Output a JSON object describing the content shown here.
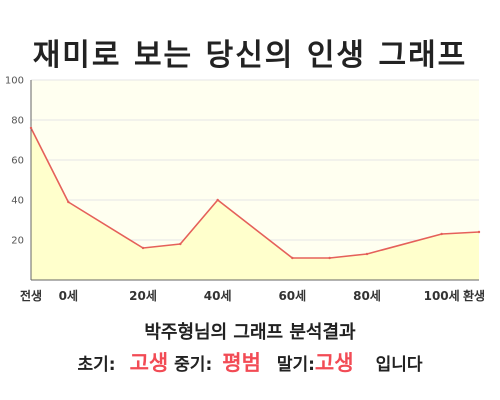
{
  "title": "재미로 보는 당신의 인생 그래프",
  "subtitle": "박주형님의 그래프 분석결과",
  "result": {
    "early_label": "초기:",
    "early_value": "고생",
    "middle_label": "중기:",
    "middle_value": "평범",
    "late_label": "말기:",
    "late_value": "고생",
    "suffix": "입니다"
  },
  "colors": {
    "line": "#e5605a",
    "fill": "#ffffcc",
    "plot_background": "#fffff0",
    "grid": "#e6e6e6",
    "highlight_text": "#f24b55"
  },
  "chart_data": {
    "type": "area",
    "x": [
      -10,
      0,
      20,
      30,
      40,
      60,
      70,
      80,
      100,
      110
    ],
    "values": [
      76,
      39,
      16,
      18,
      40,
      11,
      11,
      13,
      23,
      24
    ],
    "x_ticks": [
      {
        "x": -10,
        "label": "전생"
      },
      {
        "x": 0,
        "label": "0세"
      },
      {
        "x": 20,
        "label": "20세"
      },
      {
        "x": 40,
        "label": "40세"
      },
      {
        "x": 60,
        "label": "60세"
      },
      {
        "x": 80,
        "label": "80세"
      },
      {
        "x": 100,
        "label": "100세"
      },
      {
        "x": 110,
        "label": "환생"
      }
    ],
    "y_ticks": [
      20,
      40,
      60,
      80,
      100
    ],
    "xlim": [
      -10,
      110
    ],
    "ylim": [
      0,
      100
    ],
    "grid": true,
    "legend": "none"
  }
}
